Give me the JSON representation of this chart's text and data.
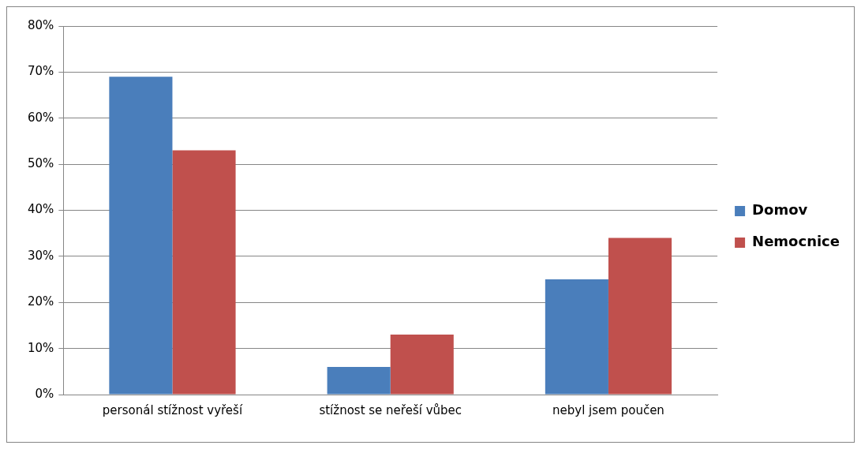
{
  "chart_data": {
    "type": "bar",
    "categories": [
      "personál stížnost vyřeší",
      "stížnost se neřeší vůbec",
      "nebyl jsem poučen"
    ],
    "series": [
      {
        "name": "Domov",
        "color": "#4a7ebb",
        "values": [
          69,
          6,
          25
        ]
      },
      {
        "name": "Nemocnice",
        "color": "#c0504d",
        "values": [
          53,
          13,
          34
        ]
      }
    ],
    "ylim": [
      0,
      80
    ],
    "yticks": [
      {
        "value": 0,
        "label": "0%"
      },
      {
        "value": 10,
        "label": "10%"
      },
      {
        "value": 20,
        "label": "20%"
      },
      {
        "value": 30,
        "label": "30%"
      },
      {
        "value": 40,
        "label": "40%"
      },
      {
        "value": 50,
        "label": "50%"
      },
      {
        "value": 60,
        "label": "60%"
      },
      {
        "value": 70,
        "label": "70%"
      },
      {
        "value": 80,
        "label": "80%"
      }
    ],
    "grid": "y",
    "legend": "right"
  }
}
